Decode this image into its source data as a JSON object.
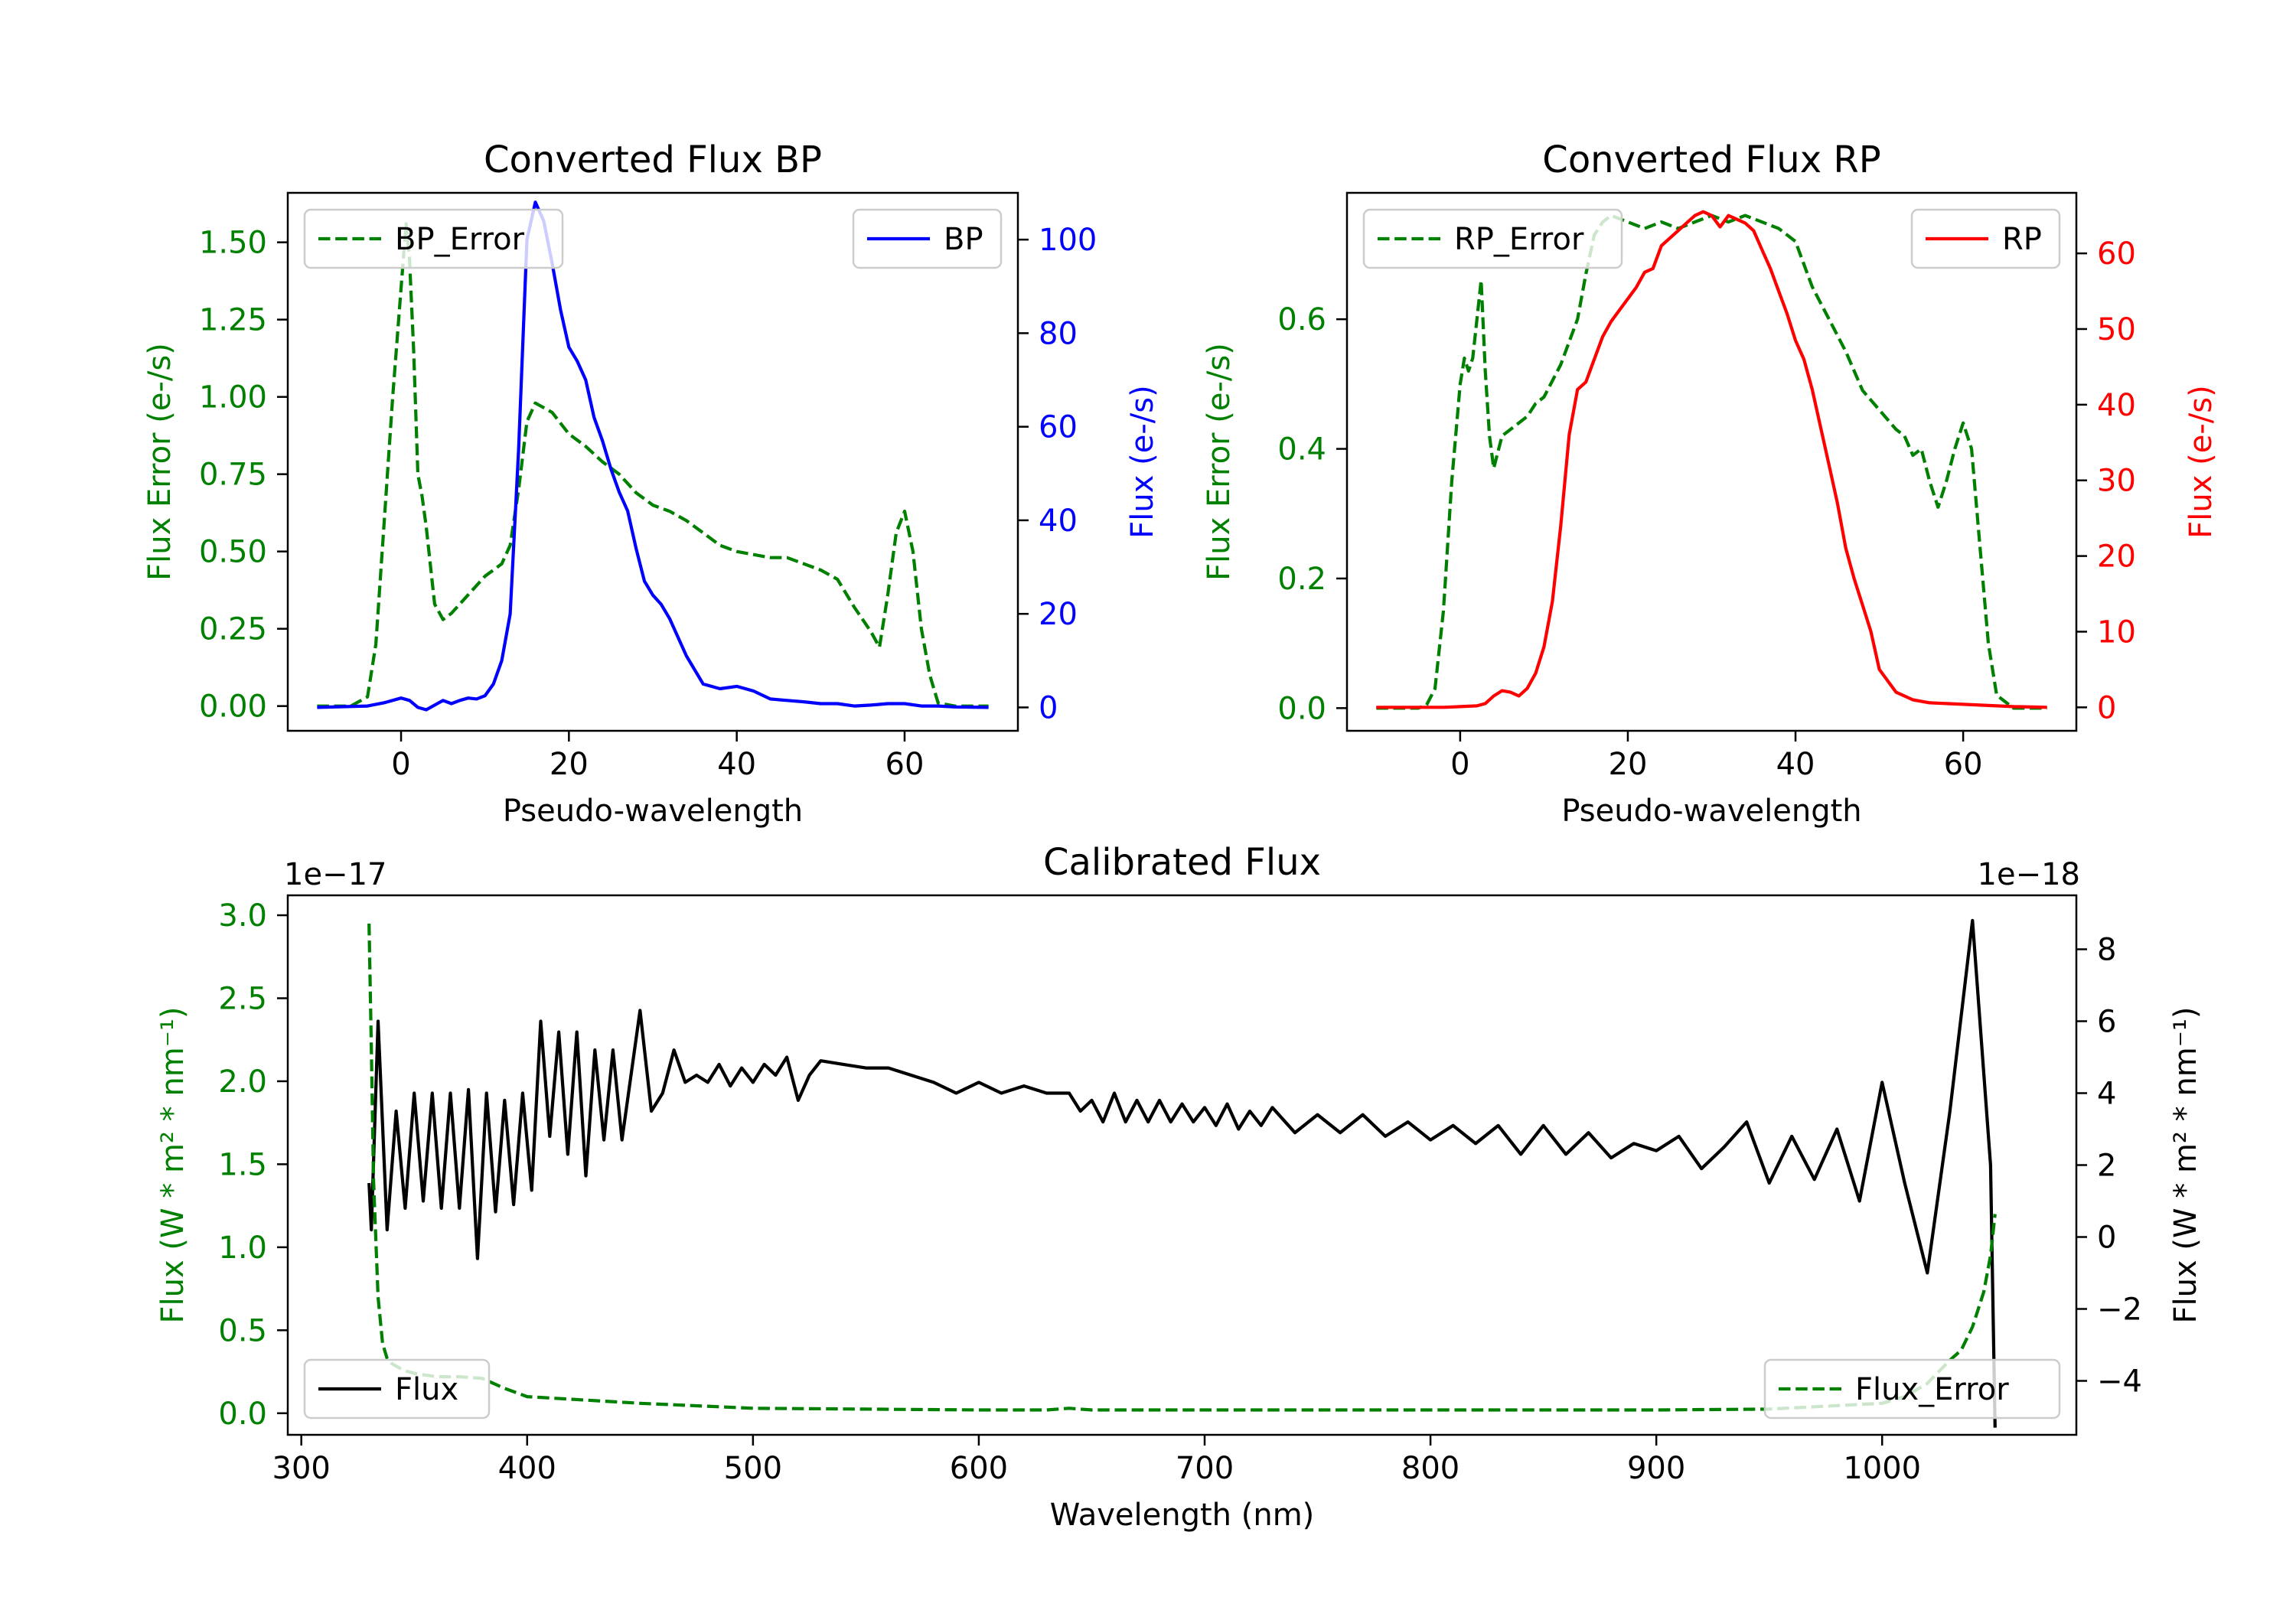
{
  "chart_data": [
    {
      "id": "bp",
      "type": "line",
      "title": "Converted Flux BP",
      "xlabel": "Pseudo-wavelength",
      "ylabel_left": "Flux Error (e-/s)",
      "ylabel_right": "Flux (e-/s)",
      "xlim": [
        -13.5,
        73.5
      ],
      "ylim_left": [
        -0.08,
        1.66
      ],
      "ylim_right": [
        -5,
        110
      ],
      "xticks": [
        0,
        20,
        40,
        60
      ],
      "yticks_left": [
        0.0,
        0.25,
        0.5,
        0.75,
        1.0,
        1.25,
        1.5
      ],
      "yticks_left_labels": [
        "0.00",
        "0.25",
        "0.50",
        "0.75",
        "1.00",
        "1.25",
        "1.50"
      ],
      "yticks_right": [
        0,
        20,
        40,
        60,
        80,
        100
      ],
      "yticks_right_labels": [
        "0",
        "20",
        "40",
        "60",
        "80",
        "100"
      ],
      "series": [
        {
          "name": "BP_Error",
          "axis": "left",
          "color": "#008000",
          "dash": true,
          "legend": "top-left",
          "x": [
            -10,
            -6,
            -4,
            -3,
            -2,
            -1,
            0,
            0.6,
            1,
            1.5,
            2,
            2.5,
            3,
            4,
            5,
            6,
            8,
            10,
            12,
            13,
            14,
            15,
            16,
            18,
            20,
            22,
            24,
            26,
            28,
            30,
            32,
            34,
            36,
            38,
            40,
            42,
            44,
            46,
            48,
            50,
            52,
            54,
            56,
            57,
            58,
            59,
            60,
            61,
            62,
            63,
            64,
            66,
            70
          ],
          "values": [
            0.0,
            0.0,
            0.03,
            0.2,
            0.6,
            1.0,
            1.35,
            1.56,
            1.45,
            1.15,
            0.75,
            0.68,
            0.58,
            0.33,
            0.28,
            0.3,
            0.36,
            0.42,
            0.46,
            0.52,
            0.7,
            0.92,
            0.98,
            0.95,
            0.88,
            0.84,
            0.79,
            0.75,
            0.69,
            0.65,
            0.63,
            0.6,
            0.56,
            0.52,
            0.5,
            0.49,
            0.48,
            0.48,
            0.46,
            0.44,
            0.41,
            0.32,
            0.24,
            0.19,
            0.36,
            0.56,
            0.63,
            0.5,
            0.25,
            0.1,
            0.01,
            0.0,
            0.0
          ]
        },
        {
          "name": "BP",
          "axis": "right",
          "color": "#0000ff",
          "dash": false,
          "legend": "top-right",
          "x": [
            -10,
            -4,
            -2,
            0,
            1,
            2,
            3,
            4,
            5,
            6,
            7,
            8,
            9,
            10,
            11,
            12,
            13,
            14,
            15,
            16,
            17,
            18,
            19,
            20,
            21,
            22,
            23,
            24,
            25,
            26,
            27,
            28,
            29,
            30,
            31,
            32,
            33,
            34,
            35,
            36,
            38,
            40,
            42,
            44,
            46,
            48,
            50,
            52,
            54,
            56,
            58,
            60,
            62,
            64,
            66,
            70
          ],
          "values": [
            0,
            0.3,
            1,
            2,
            1.5,
            0,
            -0.5,
            0.5,
            1.5,
            0.8,
            1.5,
            2.0,
            1.8,
            2.5,
            5,
            10,
            20,
            55,
            100,
            108,
            104,
            95,
            85,
            77,
            74,
            70,
            62,
            57,
            51,
            46,
            42,
            34,
            27,
            24,
            22,
            19,
            15,
            11,
            8,
            5,
            4,
            4.5,
            3.5,
            1.8,
            1.5,
            1.2,
            0.8,
            0.8,
            0.3,
            0.5,
            0.8,
            0.8,
            0.3,
            0.3,
            0.1,
            0
          ]
        }
      ]
    },
    {
      "id": "rp",
      "type": "line",
      "title": "Converted Flux RP",
      "xlabel": "Pseudo-wavelength",
      "ylabel_left": "Flux Error (e-/s)",
      "ylabel_right": "Flux (e-/s)",
      "xlim": [
        -13.5,
        73.5
      ],
      "ylim_left": [
        -0.035,
        0.795
      ],
      "ylim_right": [
        -3.1,
        68
      ],
      "xticks": [
        0,
        20,
        40,
        60
      ],
      "yticks_left": [
        0.0,
        0.2,
        0.4,
        0.6
      ],
      "yticks_left_labels": [
        "0.0",
        "0.2",
        "0.4",
        "0.6"
      ],
      "yticks_right": [
        0,
        10,
        20,
        30,
        40,
        50,
        60
      ],
      "yticks_right_labels": [
        "0",
        "10",
        "20",
        "30",
        "40",
        "50",
        "60"
      ],
      "series": [
        {
          "name": "RP_Error",
          "axis": "left",
          "color": "#008000",
          "dash": true,
          "legend": "top-left",
          "x": [
            -10,
            -5,
            -4,
            -3,
            -2,
            -1,
            0,
            0.5,
            1,
            1.5,
            2,
            2.5,
            3,
            3.5,
            4,
            5,
            6,
            7,
            8,
            9,
            10,
            12,
            14,
            15,
            16,
            17,
            18,
            20,
            22,
            24,
            26,
            28,
            30,
            32,
            34,
            36,
            38,
            40,
            42,
            44,
            46,
            48,
            50,
            52,
            53,
            54,
            55,
            56,
            57,
            58,
            59,
            60,
            61,
            62,
            63,
            64,
            66,
            70
          ],
          "values": [
            0.0,
            0.0,
            0.005,
            0.03,
            0.15,
            0.35,
            0.5,
            0.54,
            0.52,
            0.54,
            0.6,
            0.66,
            0.52,
            0.42,
            0.37,
            0.42,
            0.43,
            0.44,
            0.45,
            0.47,
            0.48,
            0.53,
            0.6,
            0.67,
            0.73,
            0.75,
            0.76,
            0.75,
            0.74,
            0.75,
            0.74,
            0.75,
            0.76,
            0.75,
            0.76,
            0.75,
            0.74,
            0.72,
            0.65,
            0.6,
            0.55,
            0.49,
            0.46,
            0.43,
            0.42,
            0.39,
            0.4,
            0.35,
            0.31,
            0.35,
            0.4,
            0.44,
            0.4,
            0.25,
            0.1,
            0.02,
            0.0,
            0.0
          ]
        },
        {
          "name": "RP",
          "axis": "right",
          "color": "#ff0000",
          "dash": false,
          "legend": "top-right",
          "x": [
            -10,
            -2,
            0,
            2,
            3,
            4,
            5,
            6,
            7,
            8,
            9,
            10,
            11,
            12,
            13,
            14,
            15,
            16,
            17,
            18,
            19,
            20,
            21,
            22,
            23,
            24,
            25,
            26,
            27,
            28,
            29,
            30,
            31,
            32,
            33,
            34,
            35,
            36,
            37,
            38,
            39,
            40,
            41,
            42,
            43,
            44,
            45,
            46,
            47,
            48,
            49,
            50,
            52,
            54,
            56,
            58,
            60,
            62,
            64,
            66,
            70
          ],
          "values": [
            0,
            0,
            0.1,
            0.2,
            0.5,
            1.5,
            2.2,
            2,
            1.5,
            2.5,
            4.5,
            8,
            14,
            24,
            36,
            42,
            43,
            46,
            49,
            51,
            52.5,
            54,
            55.5,
            57.5,
            58,
            61,
            62,
            63,
            64,
            65,
            65.5,
            65,
            63.5,
            65,
            64.5,
            64,
            63,
            60.5,
            58,
            55,
            52,
            48.5,
            46,
            42,
            37,
            32,
            27,
            21,
            17,
            13.5,
            10,
            5,
            2,
            1,
            0.6,
            0.5,
            0.4,
            0.3,
            0.2,
            0.1,
            0
          ]
        }
      ]
    },
    {
      "id": "cal",
      "type": "line",
      "title": "Calibrated Flux",
      "xlabel": "Wavelength (nm)",
      "ylabel_left": "Flux (W * m² * nm⁻¹)",
      "ylabel_right": "Flux (W * m² * nm⁻¹)",
      "offset_left": "1e−17",
      "offset_right": "1e−18",
      "xlim": [
        294,
        1086
      ],
      "ylim_left": [
        -0.13,
        3.12
      ],
      "ylim_right": [
        -5.5,
        9.5
      ],
      "xticks": [
        300,
        400,
        500,
        600,
        700,
        800,
        900,
        1000
      ],
      "yticks_left": [
        0.0,
        0.5,
        1.0,
        1.5,
        2.0,
        2.5,
        3.0
      ],
      "yticks_left_labels": [
        "0.0",
        "0.5",
        "1.0",
        "1.5",
        "2.0",
        "2.5",
        "3.0"
      ],
      "yticks_right": [
        -4,
        -2,
        0,
        2,
        4,
        6,
        8
      ],
      "yticks_right_labels": [
        "−4",
        "−2",
        "0",
        "2",
        "4",
        "6",
        "8"
      ],
      "series": [
        {
          "name": "Flux",
          "axis": "right",
          "color": "#000000",
          "dash": false,
          "legend": "bottom-left",
          "x": [
            330,
            331,
            334,
            338,
            342,
            346,
            350,
            354,
            358,
            362,
            366,
            370,
            374,
            378,
            382,
            386,
            390,
            394,
            398,
            402,
            406,
            410,
            414,
            418,
            422,
            426,
            430,
            434,
            438,
            442,
            446,
            450,
            455,
            460,
            465,
            470,
            475,
            480,
            485,
            490,
            495,
            500,
            505,
            510,
            515,
            520,
            525,
            530,
            540,
            550,
            560,
            570,
            580,
            590,
            600,
            610,
            620,
            630,
            640,
            645,
            650,
            655,
            660,
            665,
            670,
            675,
            680,
            685,
            690,
            695,
            700,
            705,
            710,
            715,
            720,
            725,
            730,
            740,
            750,
            760,
            770,
            780,
            790,
            800,
            810,
            820,
            830,
            840,
            850,
            860,
            870,
            880,
            890,
            900,
            910,
            920,
            930,
            940,
            950,
            960,
            970,
            980,
            990,
            1000,
            1010,
            1020,
            1030,
            1040,
            1048,
            1050
          ],
          "values": [
            1.5,
            0.2,
            6.0,
            0.2,
            3.5,
            0.8,
            4.0,
            1.0,
            4.0,
            0.8,
            4.0,
            0.8,
            4.1,
            -0.6,
            4.0,
            0.7,
            3.8,
            0.9,
            4.0,
            1.3,
            6.0,
            2.8,
            5.7,
            2.3,
            5.7,
            1.7,
            5.2,
            2.7,
            5.2,
            2.7,
            4.5,
            6.3,
            3.5,
            4.0,
            5.2,
            4.3,
            4.5,
            4.3,
            4.8,
            4.2,
            4.7,
            4.3,
            4.8,
            4.5,
            5.0,
            3.8,
            4.5,
            4.9,
            4.8,
            4.7,
            4.7,
            4.5,
            4.3,
            4.0,
            4.3,
            4.0,
            4.2,
            4.0,
            4.0,
            3.5,
            3.8,
            3.2,
            4.0,
            3.2,
            3.8,
            3.2,
            3.8,
            3.2,
            3.7,
            3.2,
            3.6,
            3.1,
            3.7,
            3.0,
            3.5,
            3.1,
            3.6,
            2.9,
            3.4,
            2.9,
            3.4,
            2.8,
            3.2,
            2.7,
            3.1,
            2.6,
            3.1,
            2.3,
            3.1,
            2.3,
            2.9,
            2.2,
            2.6,
            2.4,
            2.8,
            1.9,
            2.5,
            3.2,
            1.5,
            2.8,
            1.6,
            3.0,
            1.0,
            4.3,
            1.5,
            -1.0,
            3.5,
            8.8,
            2.0,
            -5.3
          ]
        },
        {
          "name": "Flux_Error",
          "axis": "left",
          "color": "#008000",
          "dash": true,
          "legend": "bottom-right",
          "x": [
            330,
            331,
            332,
            334,
            336,
            338,
            340,
            345,
            350,
            360,
            370,
            380,
            390,
            400,
            450,
            500,
            550,
            600,
            630,
            640,
            645,
            650,
            700,
            800,
            900,
            950,
            1000,
            1010,
            1020,
            1030,
            1035,
            1040,
            1045,
            1048,
            1050
          ],
          "values": [
            2.95,
            2.2,
            1.4,
            0.7,
            0.42,
            0.33,
            0.3,
            0.26,
            0.24,
            0.22,
            0.22,
            0.21,
            0.15,
            0.1,
            0.06,
            0.03,
            0.025,
            0.02,
            0.02,
            0.03,
            0.025,
            0.02,
            0.02,
            0.02,
            0.02,
            0.025,
            0.06,
            0.1,
            0.18,
            0.32,
            0.38,
            0.52,
            0.73,
            0.95,
            1.2
          ]
        }
      ]
    }
  ]
}
